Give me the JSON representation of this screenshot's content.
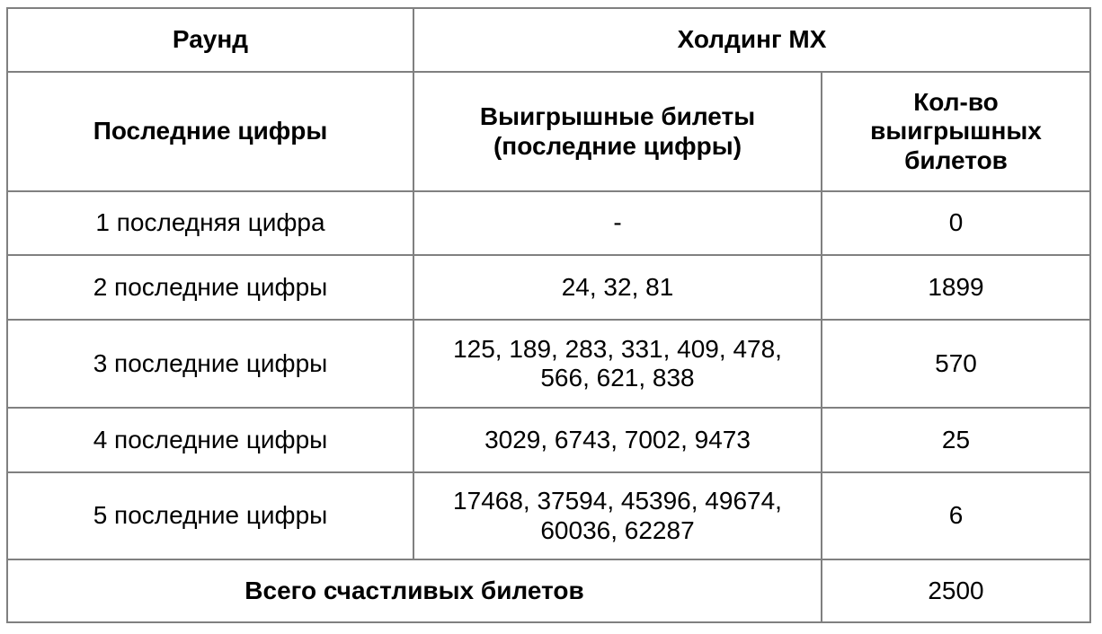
{
  "table": {
    "round": {
      "label": "Раунд",
      "value": "Холдинг МХ"
    },
    "columns": [
      "Последние цифры",
      "Выигрышные билеты (последние цифры)",
      "Кол-во выигрышных билетов"
    ],
    "rows": [
      {
        "digits": "1 последняя цифра",
        "tickets": "-",
        "count": "0"
      },
      {
        "digits": "2 последние цифры",
        "tickets": "24, 32, 81",
        "count": "1899"
      },
      {
        "digits": "3 последние цифры",
        "tickets": "125, 189, 283, 331, 409, 478, 566, 621, 838",
        "count": "570"
      },
      {
        "digits": "4 последние цифры",
        "tickets": "3029, 6743, 7002, 9473",
        "count": "25"
      },
      {
        "digits": "5 последние цифры",
        "tickets": "17468, 37594, 45396, 49674, 60036, 62287",
        "count": "6"
      }
    ],
    "footer": {
      "label": "Всего счастливых билетов",
      "total": "2500"
    }
  },
  "colors": {
    "border": "#808080",
    "text": "#000000",
    "background": "#ffffff"
  }
}
